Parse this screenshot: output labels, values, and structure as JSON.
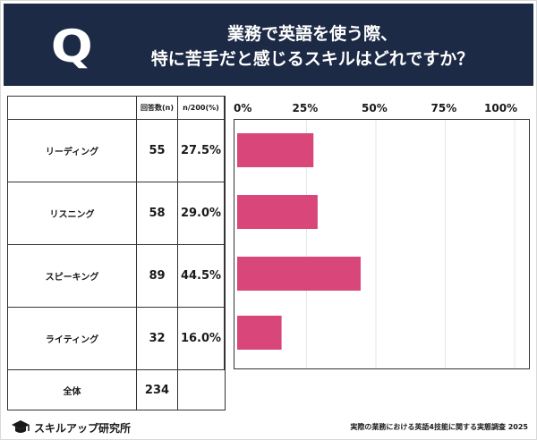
{
  "header": {
    "q_letter": "Q",
    "title_line1": "業務で英語を使う際、",
    "title_line2": "特に苦手だと感じるスキルはどれですか？"
  },
  "table": {
    "col_count_label": "回答数(n)",
    "col_pct_label": "n/200(%)",
    "rows": [
      {
        "label": "リーディング",
        "count": "55",
        "pct": "27.5%"
      },
      {
        "label": "リスニング",
        "count": "58",
        "pct": "29.0%"
      },
      {
        "label": "スピーキング",
        "count": "89",
        "pct": "44.5%"
      },
      {
        "label": "ライティング",
        "count": "32",
        "pct": "16.0%"
      }
    ],
    "total": {
      "label": "全体",
      "count": "234"
    }
  },
  "chart_data": {
    "type": "bar",
    "orientation": "horizontal",
    "categories": [
      "リーディング",
      "リスニング",
      "スピーキング",
      "ライティング"
    ],
    "values": [
      27.5,
      29.0,
      44.5,
      16.0
    ],
    "xlim": [
      0,
      100
    ],
    "x_ticks": [
      "0%",
      "25%",
      "50%",
      "75%",
      "100%"
    ],
    "grid": true,
    "bar_color": "#d9467a"
  },
  "footer": {
    "logo_text": "スキルアップ研究所",
    "note": "実際の業務における英語4技能に関する実態調査 2025"
  },
  "colors": {
    "header_bg": "#1d2a45",
    "bar": "#d9467a"
  }
}
